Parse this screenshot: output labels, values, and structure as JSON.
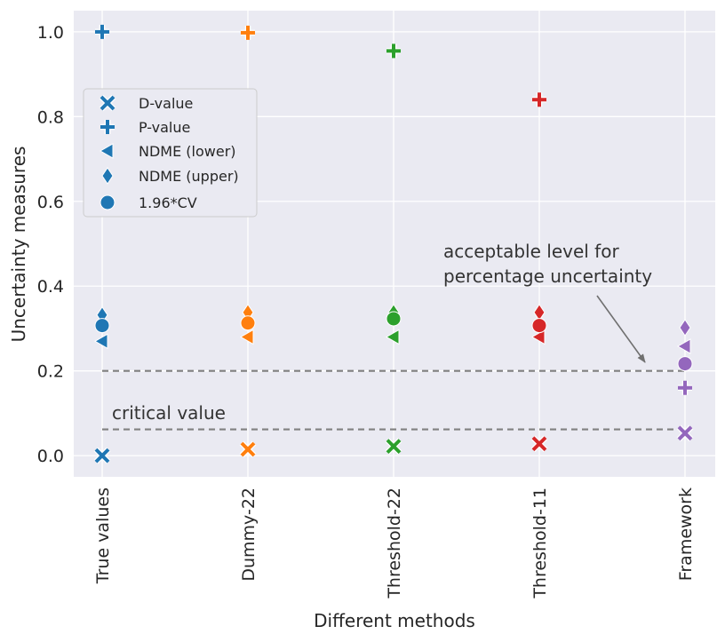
{
  "chart_data": {
    "type": "scatter",
    "title": "",
    "xlabel": "Different methods",
    "ylabel": "Uncertainty measures",
    "categories": [
      "True values",
      "Dummy-22",
      "Threshold-22",
      "Threshold-11",
      "Framework"
    ],
    "category_colors": [
      "#1f77b4",
      "#ff7f0e",
      "#2ca02c",
      "#d62728",
      "#9467bd"
    ],
    "ylim": [
      -0.05,
      1.05
    ],
    "yticks": [
      0.0,
      0.2,
      0.4,
      0.6,
      0.8,
      1.0
    ],
    "ytick_labels": [
      "0.0",
      "0.2",
      "0.4",
      "0.6",
      "0.8",
      "1.0"
    ],
    "grid": true,
    "background": "#eaeaf2",
    "legend_position": "upper-left",
    "series": [
      {
        "name": "D-value",
        "marker": "x-icon",
        "values": [
          0.0,
          0.015,
          0.022,
          0.028,
          0.053
        ]
      },
      {
        "name": "P-value",
        "marker": "plus-icon",
        "values": [
          1.0,
          0.998,
          0.955,
          0.84,
          0.16
        ]
      },
      {
        "name": "NDME (lower)",
        "marker": "triangle-left-icon",
        "values": [
          0.27,
          0.28,
          0.28,
          0.28,
          0.258
        ]
      },
      {
        "name": "NDME (upper)",
        "marker": "diamond-icon",
        "values": [
          0.332,
          0.338,
          0.338,
          0.338,
          0.302
        ]
      },
      {
        "name": "1.96*CV",
        "marker": "circle-icon",
        "values": [
          0.307,
          0.313,
          0.323,
          0.307,
          0.217
        ]
      }
    ],
    "reference_lines": [
      {
        "y": 0.2,
        "color": "#808080",
        "style": "dashed"
      },
      {
        "y": 0.062,
        "color": "#808080",
        "style": "dashed"
      }
    ],
    "annotations": [
      {
        "text": "critical value"
      },
      {
        "text_lines": [
          "acceptable level for",
          "percentage uncertainty"
        ],
        "arrow_to": {
          "x": "Framework",
          "y": 0.2
        }
      }
    ]
  }
}
